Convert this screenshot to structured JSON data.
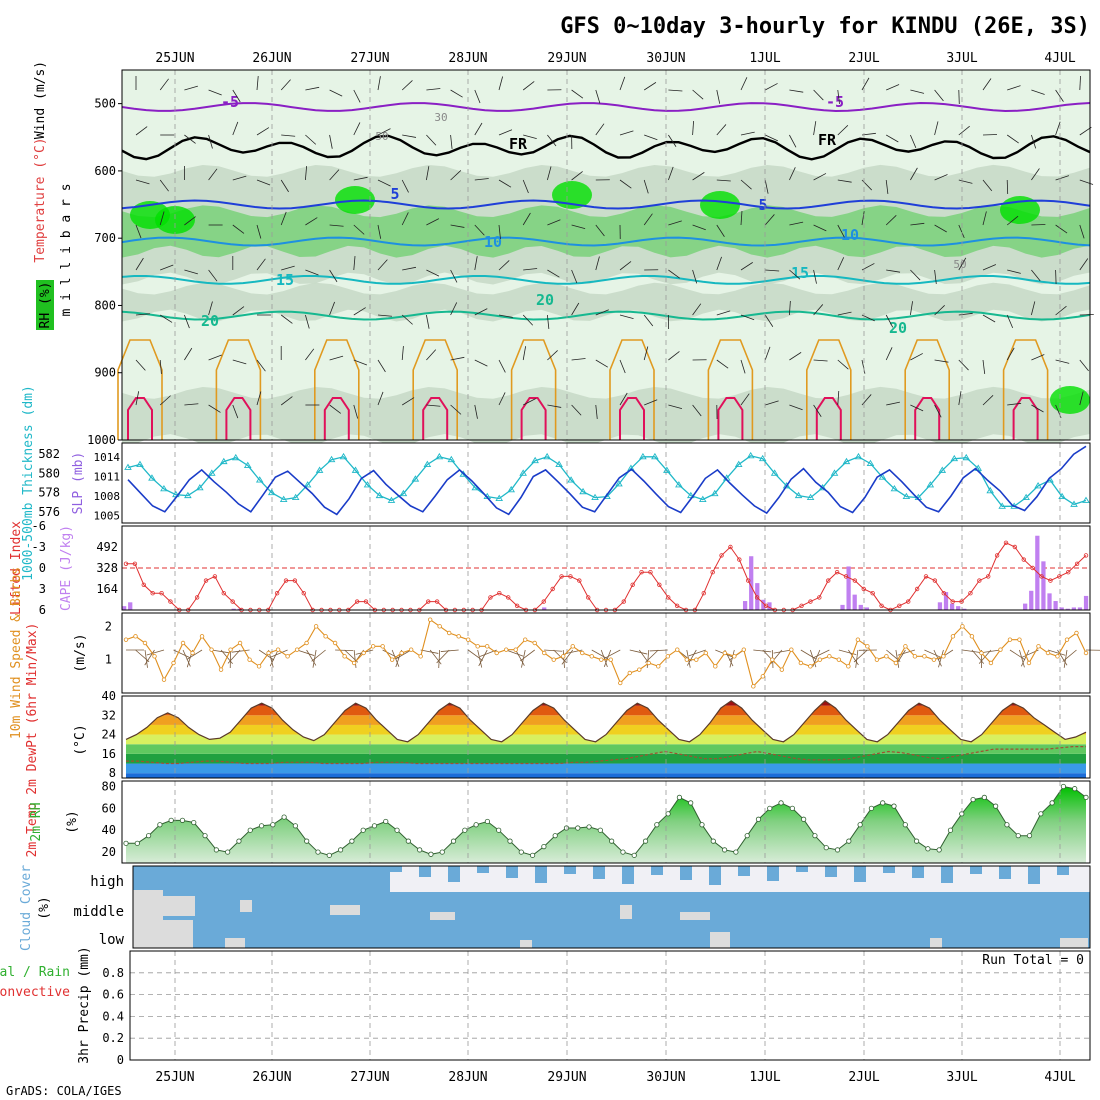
{
  "title": "GFS 0~10day 3-hourly for KINDU (26E, 3S)",
  "credit": "GrADS: COLA/IGES",
  "dates": [
    "25JUN",
    "26JUN",
    "27JUN",
    "28JUN",
    "29JUN",
    "30JUN",
    "1JUL",
    "2JUL",
    "3JUL",
    "4JUL"
  ],
  "run_total": "Run Total = 0",
  "colors": {
    "rh_light": "#e6f4e6",
    "rh_mid": "#c5d8c5",
    "rh_high": "#7ad17a",
    "rh_max": "#00e000",
    "temp_m5": "#8a1fc4",
    "temp_fr": "#000000",
    "temp_5": "#1f3fd8",
    "temp_10": "#1e90e0",
    "temp_15": "#16b8c0",
    "temp_20": "#16b890",
    "temp_warm": "#e09a20",
    "temp_hot": "#e0105a",
    "slp": "#1a3cc8",
    "thickness": "#20b8c8",
    "lifted_index": "#e03030",
    "cape": "#c080f0",
    "wind10m": "#e09020",
    "rh2m": "#30b030",
    "cloud": "#6aaad8",
    "precip_total": "#30b030",
    "precip_conv": "#e03030"
  },
  "chart_data": [
    {
      "type": "heatmap",
      "panel": "upper-air",
      "ylabel": "m i l l i b a r s",
      "side_labels": [
        "Wind (m/s)",
        "Temperature (°C)",
        "RH (%)"
      ],
      "yticks": [
        500,
        600,
        700,
        800,
        900,
        1000
      ],
      "ylim": [
        450,
        1000
      ],
      "contour_labels": [
        "-5",
        "FR",
        "5",
        "10",
        "15",
        "20",
        "30",
        "50"
      ],
      "isotherms": [
        {
          "label": "-5",
          "pressure": 505
        },
        {
          "label": "FR",
          "pressure": 565
        },
        {
          "label": "5",
          "pressure": 650
        },
        {
          "label": "10",
          "pressure": 705
        },
        {
          "label": "15",
          "pressure": 762
        },
        {
          "label": "20",
          "pressure": 815
        }
      ]
    },
    {
      "type": "line",
      "panel": "slp-thickness",
      "left_label": "1000-500mb Thickness (dm)",
      "right_label": "SLP (mb)",
      "left_ticks": [
        576,
        578,
        580,
        582
      ],
      "right_ticks": [
        1005,
        1008,
        1011,
        1014
      ],
      "series": [
        {
          "name": "SLP (mb)",
          "values": [
            1010.5,
            1008.5,
            1006.5,
            1005.6,
            1008.0,
            1010.5,
            1012.0,
            1010.2,
            1008.6,
            1006.8,
            1005.6,
            1008.2,
            1010.9,
            1011.8,
            1010.1,
            1008.4,
            1006.3,
            1005.2,
            1007.6,
            1010.7,
            1011.9,
            1009.8,
            1008.1,
            1006.5,
            1005.6,
            1008.0,
            1010.5,
            1012.0,
            1010.3,
            1008.3,
            1006.2,
            1005.2,
            1007.8,
            1011.0,
            1012.0,
            1010.2,
            1008.3,
            1006.3,
            1005.6,
            1008.2,
            1010.8,
            1012.1,
            1010.3,
            1008.3,
            1006.4,
            1005.5,
            1008.0,
            1010.7,
            1012.0,
            1010.0,
            1008.2,
            1006.5,
            1005.4,
            1007.8,
            1010.6,
            1012.2,
            1010.1,
            1008.6,
            1006.4,
            1005.5,
            1007.8,
            1010.9,
            1012.0,
            1010.2,
            1008.2,
            1006.3,
            1005.6,
            1008.0,
            1010.8,
            1012.2,
            1010.4,
            1008.8,
            1006.6,
            1005.8,
            1007.9,
            1010.7,
            1012.2,
            1014.4,
            1015.6
          ]
        },
        {
          "name": "1000-500mb Thickness (dm)",
          "values": [
            580.6,
            580.9,
            579.5,
            578.4,
            577.8,
            577.7,
            578.5,
            580.0,
            581.2,
            581.6,
            580.8,
            579.3,
            578.0,
            577.3,
            577.5,
            578.8,
            580.3,
            581.4,
            581.7,
            580.3,
            578.8,
            577.7,
            577.2,
            577.9,
            579.4,
            580.9,
            581.7,
            581.4,
            579.9,
            578.5,
            577.6,
            577.4,
            578.3,
            580.0,
            581.3,
            581.7,
            580.9,
            579.3,
            578.1,
            577.5,
            577.6,
            578.9,
            580.5,
            581.7,
            581.7,
            580.3,
            578.8,
            577.7,
            577.3,
            577.9,
            579.5,
            580.9,
            581.8,
            581.5,
            580.0,
            578.7,
            577.7,
            577.5,
            578.5,
            580.0,
            581.2,
            581.7,
            581.0,
            579.6,
            578.4,
            577.6,
            577.5,
            578.8,
            580.3,
            581.5,
            581.6,
            580.5,
            578.2,
            576.6,
            576.6,
            577.5,
            578.7,
            579.3,
            577.6,
            576.8,
            577.2
          ]
        }
      ]
    },
    {
      "type": "bar",
      "panel": "cape-li",
      "left_label": "Lifted Index",
      "right_label": "CAPE (J/kg)",
      "li_ticks": [
        -6,
        -3,
        0,
        3,
        6
      ],
      "cape_ticks": [
        164,
        328,
        492
      ],
      "series": [
        {
          "name": "Lifted Index",
          "values": [
            -0.6,
            -0.6,
            2.4,
            3.6,
            3.6,
            4.8,
            6,
            6,
            4.2,
            1.8,
            1.2,
            3.6,
            4.8,
            6,
            6,
            6,
            6,
            3.6,
            1.8,
            1.8,
            3.6,
            6,
            6,
            6,
            6,
            6,
            4.8,
            4.8,
            6,
            6,
            6,
            6,
            6,
            6,
            4.8,
            4.8,
            6,
            6,
            6,
            6,
            6,
            4.2,
            3.6,
            4.2,
            5.4,
            6,
            6,
            4.8,
            3,
            1.2,
            1.2,
            1.8,
            4.2,
            6,
            6,
            6,
            4.8,
            2.4,
            0.6,
            0.6,
            2.4,
            4.2,
            5.4,
            6,
            6,
            3.6,
            0.6,
            -1.8,
            -3,
            -1.2,
            1.8,
            4.2,
            5.4,
            6,
            6,
            6,
            5.4,
            4.8,
            4.2,
            1.8,
            0.6,
            1.2,
            1.8,
            3.0,
            3.6,
            5.4,
            6,
            5.4,
            4.8,
            3.0,
            1.2,
            1.8,
            3.6,
            4.8,
            4.8,
            3.6,
            1.8,
            1.2,
            -1.8,
            -3.6,
            -3.0,
            -1.2,
            0.0,
            1.2,
            1.8,
            1.2,
            0.6,
            -0.6,
            -1.8
          ]
        },
        {
          "name": "CAPE (J/kg)",
          "values": [
            30,
            60,
            0,
            0,
            0,
            0,
            0,
            0,
            0,
            0,
            0,
            0,
            0,
            0,
            0,
            0,
            0,
            0,
            10,
            10,
            0,
            0,
            0,
            0,
            0,
            0,
            0,
            0,
            0,
            0,
            0,
            0,
            0,
            0,
            0,
            0,
            0,
            0,
            0,
            0,
            0,
            0,
            0,
            0,
            0,
            0,
            0,
            0,
            0,
            0,
            0,
            0,
            0,
            0,
            0,
            0,
            0,
            0,
            0,
            0,
            0,
            0,
            0,
            0,
            0,
            0,
            0,
            0,
            0,
            20,
            0,
            0,
            0,
            0,
            0,
            0,
            0,
            0,
            0,
            0,
            0,
            0,
            0,
            0,
            0,
            0,
            0,
            0,
            0,
            0,
            0,
            0,
            0,
            0,
            0,
            0,
            0,
            0,
            0,
            0,
            0,
            0,
            70,
            420,
            210,
            80,
            60,
            0,
            0,
            0,
            0,
            0,
            0,
            0,
            0,
            0,
            0,
            0,
            40,
            340,
            120,
            40,
            20,
            0,
            0,
            0,
            0,
            0,
            0,
            0,
            0,
            0,
            0,
            0,
            60,
            140,
            50,
            30,
            10,
            0,
            0,
            0,
            0,
            0,
            0,
            0,
            0,
            0,
            50,
            150,
            580,
            380,
            130,
            70,
            20,
            10,
            20,
            20,
            110
          ]
        }
      ]
    },
    {
      "type": "line",
      "panel": "wind10m",
      "left_label": "10m Wind Speed & Barbs",
      "right_label": "(m/s)",
      "yticks": [
        1,
        2
      ],
      "ylim": [
        0,
        2.4
      ],
      "series": [
        {
          "name": "10m Wind Speed",
          "values": [
            1.6,
            1.7,
            1.5,
            1.1,
            0.4,
            0.9,
            1.5,
            1.2,
            1.7,
            1.3,
            0.7,
            1.3,
            1.5,
            1.0,
            0.8,
            1.2,
            1.3,
            1.1,
            1.3,
            1.5,
            2.0,
            1.7,
            1.5,
            1.1,
            0.9,
            1.2,
            1.4,
            1.4,
            1.0,
            1.2,
            1.3,
            1.1,
            2.2,
            2.0,
            1.8,
            1.7,
            1.6,
            1.4,
            1.4,
            1.2,
            1.3,
            1.3,
            1.6,
            1.5,
            1.2,
            1.0,
            1.1,
            1.4,
            1.2,
            1.1,
            1.0,
            1.0,
            0.3,
            0.6,
            0.7,
            0.9,
            0.8,
            1.1,
            1.3,
            1.0,
            1.0,
            1.2,
            0.8,
            1.2,
            1.1,
            1.3,
            0.2,
            0.5,
            1.0,
            0.7,
            1.3,
            0.9,
            0.8,
            1.0,
            1.1,
            1.0,
            0.8,
            1.6,
            1.4,
            1.0,
            1.1,
            0.9,
            1.4,
            1.1,
            1.1,
            1.0,
            1.1,
            1.7,
            2.0,
            1.7,
            1.2,
            0.9,
            1.3,
            1.6,
            1.6,
            0.9,
            1.4,
            1.2,
            1.1,
            1.6,
            1.8,
            1.2
          ]
        }
      ]
    },
    {
      "type": "area",
      "panel": "temp2m",
      "left_label": "2m Temp 2m DewPt (6hr Min/Max)",
      "right_label": "(°C)",
      "yticks": [
        8,
        16,
        24,
        32,
        40
      ],
      "ylim": [
        6,
        40
      ],
      "series": [
        {
          "name": "2m Temp",
          "values": [
            22,
            24,
            27,
            31,
            33,
            31,
            27,
            24,
            22,
            22.5,
            25,
            30,
            35,
            37,
            35,
            30,
            26,
            23,
            21.5,
            24,
            29,
            34,
            37,
            35,
            30,
            26,
            22,
            21,
            24,
            29,
            34,
            37,
            35,
            30,
            26,
            22,
            21,
            24,
            29,
            34,
            37,
            35,
            30,
            26,
            22,
            21,
            24,
            29,
            34,
            37,
            35,
            30,
            26,
            22,
            21,
            24,
            29,
            35,
            38,
            35,
            30,
            26,
            22,
            21,
            24,
            29,
            34,
            38,
            35,
            30,
            26,
            22,
            21,
            24,
            29,
            34,
            37,
            35,
            30,
            26,
            22,
            21,
            24,
            29,
            34,
            37,
            35,
            31,
            28,
            25,
            22,
            23,
            25
          ]
        },
        {
          "name": "2m DewPt",
          "values": [
            13,
            13,
            12.5,
            12,
            12,
            12.5,
            13,
            13,
            12.5,
            12,
            12,
            12,
            12.5,
            12.5,
            12.5,
            12,
            12,
            12,
            12,
            12.5,
            12.5,
            12.5,
            12,
            12,
            12,
            12,
            12,
            12,
            12,
            12,
            12,
            12,
            12,
            12,
            12.5,
            12.5,
            13,
            13.5,
            14,
            15,
            16,
            17,
            16,
            15,
            14,
            14,
            15,
            16,
            17,
            16,
            15,
            14,
            13.5,
            13.5,
            13.5,
            14,
            15,
            16,
            17,
            16.5,
            15.5,
            14.5,
            14,
            15,
            16,
            17,
            18,
            18,
            18,
            18,
            18,
            18.5,
            19,
            19
          ]
        }
      ]
    },
    {
      "type": "area",
      "panel": "rh2m",
      "left_label": "2m RH",
      "right_label": "(%)",
      "yticks": [
        20,
        40,
        60,
        80
      ],
      "ylim": [
        10,
        85
      ],
      "series": [
        {
          "name": "2m RH",
          "values": [
            28,
            28,
            35,
            45,
            49,
            49,
            47,
            35,
            22,
            20,
            30,
            40,
            44,
            45,
            52,
            44,
            30,
            20,
            17,
            22,
            30,
            40,
            44,
            48,
            40,
            30,
            22,
            18,
            20,
            30,
            40,
            45,
            48,
            40,
            30,
            20,
            17,
            25,
            35,
            42,
            42,
            43,
            40,
            30,
            20,
            17,
            30,
            45,
            55,
            70,
            65,
            45,
            30,
            22,
            20,
            35,
            50,
            60,
            65,
            60,
            50,
            35,
            24,
            22,
            30,
            45,
            60,
            65,
            62,
            45,
            30,
            23,
            22,
            40,
            55,
            68,
            70,
            62,
            45,
            35,
            35,
            55,
            65,
            80,
            78,
            70
          ]
        }
      ]
    },
    {
      "type": "heatmap",
      "panel": "cloud-cover",
      "left_label": "Cloud Cover",
      "right_label": "(%)",
      "rows": [
        "high",
        "middle",
        "low"
      ]
    },
    {
      "type": "bar",
      "panel": "precip",
      "left_label": "3hr Precip (mm)",
      "legend": [
        "Total / Rain",
        "Convective"
      ],
      "yticks": [
        0,
        0.2,
        0.4,
        0.6,
        0.8
      ],
      "ylim": [
        0,
        1
      ],
      "series": [
        {
          "name": "Total / Rain",
          "values": [
            0,
            0,
            0,
            0,
            0,
            0,
            0,
            0,
            0,
            0,
            0,
            0,
            0,
            0,
            0,
            0,
            0,
            0,
            0,
            0
          ]
        },
        {
          "name": "Convective",
          "values": [
            0,
            0,
            0,
            0,
            0,
            0,
            0,
            0,
            0,
            0,
            0,
            0,
            0,
            0,
            0,
            0,
            0,
            0,
            0,
            0
          ]
        }
      ]
    }
  ]
}
